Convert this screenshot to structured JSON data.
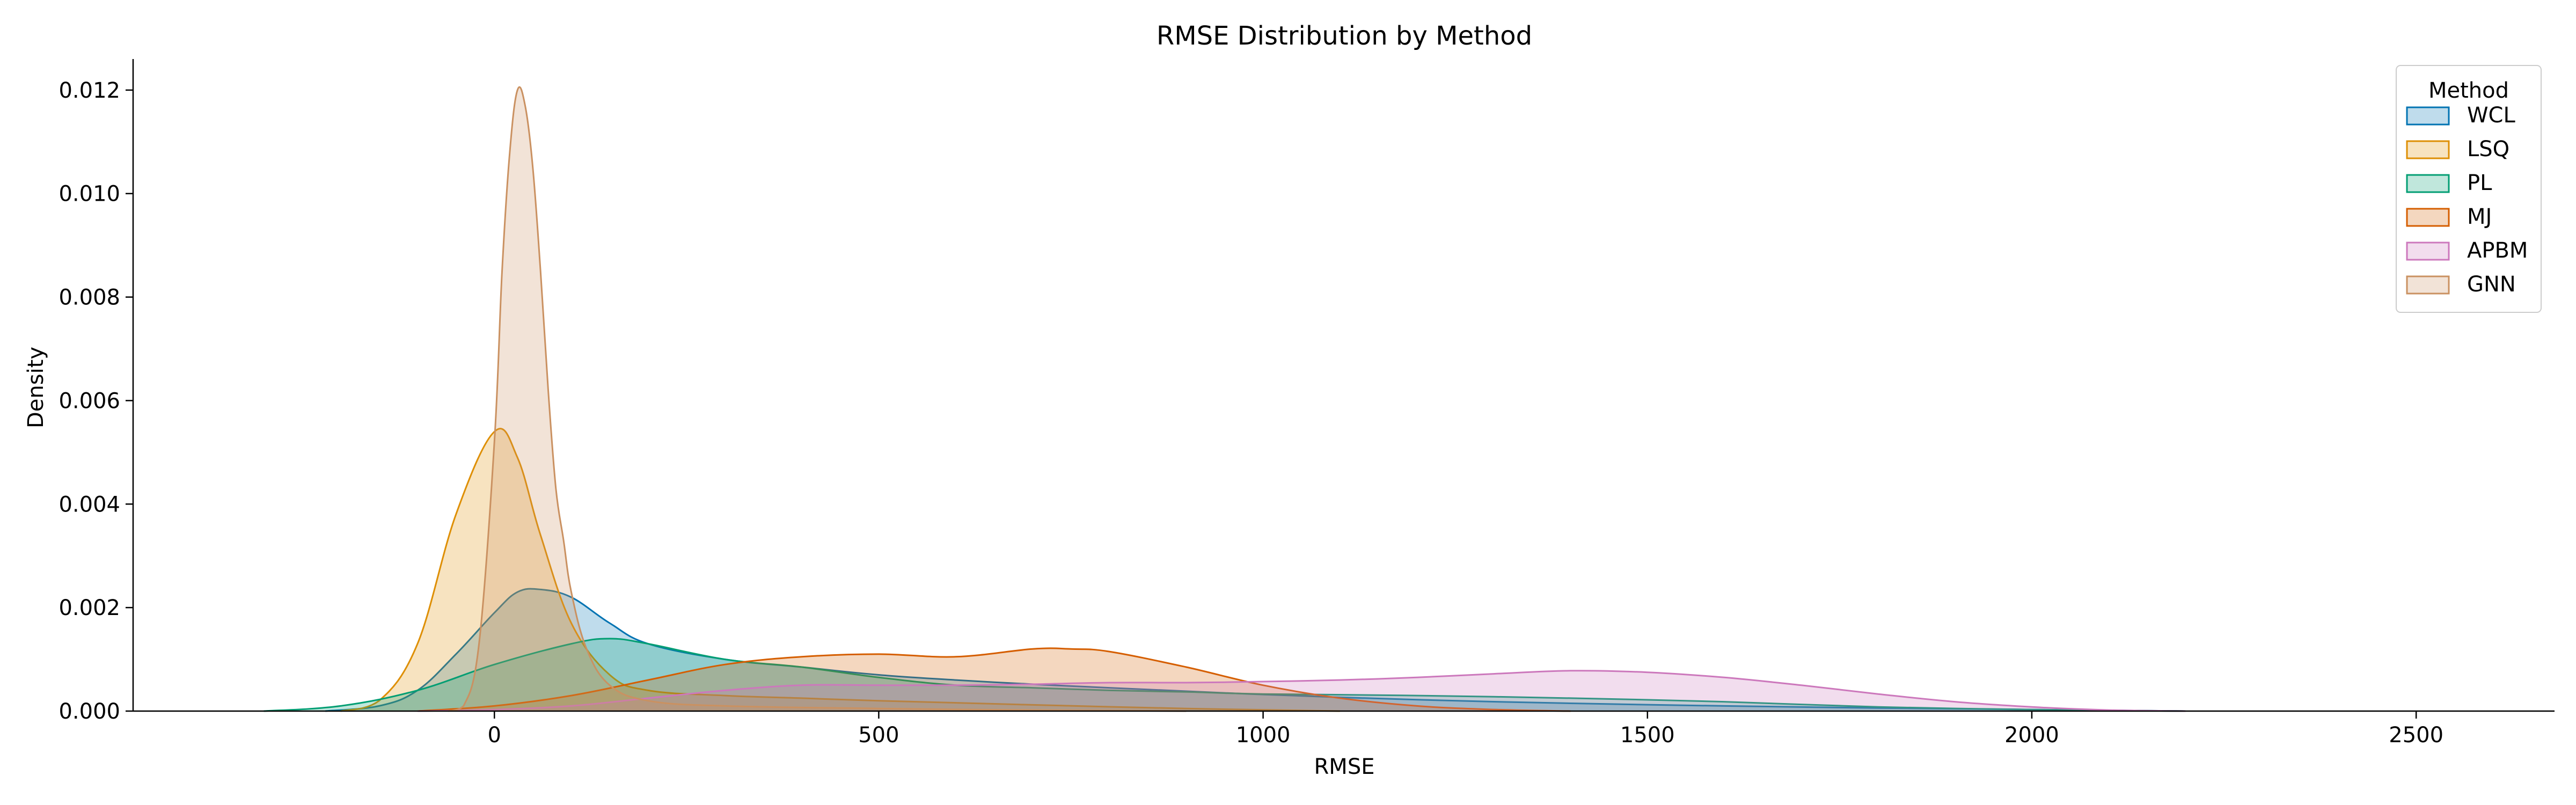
{
  "chart_data": {
    "type": "area",
    "title": "RMSE Distribution by Method",
    "xlabel": "RMSE",
    "ylabel": "Density",
    "xlim": [
      -470,
      2680
    ],
    "ylim": [
      0,
      0.0126
    ],
    "xticks": [
      0,
      500,
      1000,
      1500,
      2000,
      2500
    ],
    "yticks": [
      0.0,
      0.002,
      0.004,
      0.006,
      0.008,
      0.01,
      0.012
    ],
    "ytick_labels": [
      "0.000",
      "0.002",
      "0.004",
      "0.006",
      "0.008",
      "0.010",
      "0.012"
    ],
    "grid": false,
    "legend": {
      "title": "Method",
      "placement": "top-right"
    },
    "series": [
      {
        "name": "WCL",
        "color": "#0173b2",
        "x": [
          -220,
          -150,
          -100,
          -50,
          0,
          30,
          60,
          100,
          150,
          200,
          300,
          400,
          500,
          600,
          700,
          800,
          1000,
          1200,
          1400,
          1600,
          1800,
          2000,
          2200
        ],
        "y": [
          0,
          0.0001,
          0.0004,
          0.0011,
          0.0019,
          0.0023,
          0.00235,
          0.0022,
          0.0017,
          0.0013,
          0.001,
          0.00085,
          0.0007,
          0.0006,
          0.00052,
          0.00045,
          0.00032,
          0.00022,
          0.00015,
          0.0001,
          6e-05,
          3e-05,
          0
        ]
      },
      {
        "name": "LSQ",
        "color": "#de8f05",
        "x": [
          -200,
          -150,
          -100,
          -50,
          0,
          30,
          60,
          100,
          150,
          200,
          300,
          400,
          500,
          700,
          900,
          1100
        ],
        "y": [
          0,
          0.0002,
          0.0013,
          0.0038,
          0.0054,
          0.0049,
          0.0034,
          0.0017,
          0.0007,
          0.0004,
          0.0003,
          0.00025,
          0.0002,
          0.00012,
          5e-05,
          0
        ]
      },
      {
        "name": "PL",
        "color": "#029e73",
        "x": [
          -300,
          -200,
          -100,
          0,
          100,
          150,
          200,
          300,
          400,
          500,
          600,
          700,
          800,
          900,
          1000,
          1200,
          1400,
          1600,
          1800,
          2000,
          2200
        ],
        "y": [
          0,
          0.0001,
          0.0004,
          0.0009,
          0.0013,
          0.0014,
          0.0013,
          0.001,
          0.00085,
          0.00065,
          0.0005,
          0.00045,
          0.0004,
          0.00037,
          0.00033,
          0.0003,
          0.00025,
          0.00018,
          8e-05,
          3e-05,
          0
        ]
      },
      {
        "name": "MJ",
        "color": "#d55e00",
        "x": [
          -100,
          0,
          100,
          200,
          300,
          400,
          500,
          600,
          700,
          750,
          800,
          900,
          1000,
          1100,
          1200,
          1300,
          1400
        ],
        "y": [
          0,
          0.0001,
          0.0003,
          0.0006,
          0.0009,
          0.00105,
          0.0011,
          0.00105,
          0.0012,
          0.0012,
          0.00115,
          0.00085,
          0.0005,
          0.00025,
          0.0001,
          3e-05,
          0
        ]
      },
      {
        "name": "APBM",
        "color": "#cc78bc",
        "x": [
          -100,
          0,
          100,
          200,
          300,
          400,
          500,
          600,
          700,
          800,
          900,
          1000,
          1100,
          1200,
          1300,
          1400,
          1500,
          1600,
          1700,
          1800,
          1900,
          2000,
          2100,
          2200
        ],
        "y": [
          0,
          3e-05,
          0.0001,
          0.00025,
          0.0004,
          0.0005,
          0.0005,
          0.0005,
          0.00052,
          0.00055,
          0.00055,
          0.00057,
          0.0006,
          0.00065,
          0.00072,
          0.00078,
          0.00075,
          0.00065,
          0.0005,
          0.00033,
          0.00018,
          8e-05,
          2e-05,
          0
        ]
      },
      {
        "name": "GNN",
        "color": "#ca9161",
        "x": [
          -60,
          -40,
          -20,
          0,
          10,
          20,
          30,
          40,
          50,
          60,
          70,
          80,
          90,
          100,
          120,
          150,
          200,
          300,
          500,
          700,
          900
        ],
        "y": [
          0,
          0.0001,
          0.0013,
          0.0052,
          0.0085,
          0.0108,
          0.012,
          0.0117,
          0.0105,
          0.0085,
          0.0062,
          0.0043,
          0.0033,
          0.0023,
          0.0012,
          0.0005,
          0.0002,
          0.0001,
          5e-05,
          2e-05,
          0
        ]
      }
    ]
  }
}
